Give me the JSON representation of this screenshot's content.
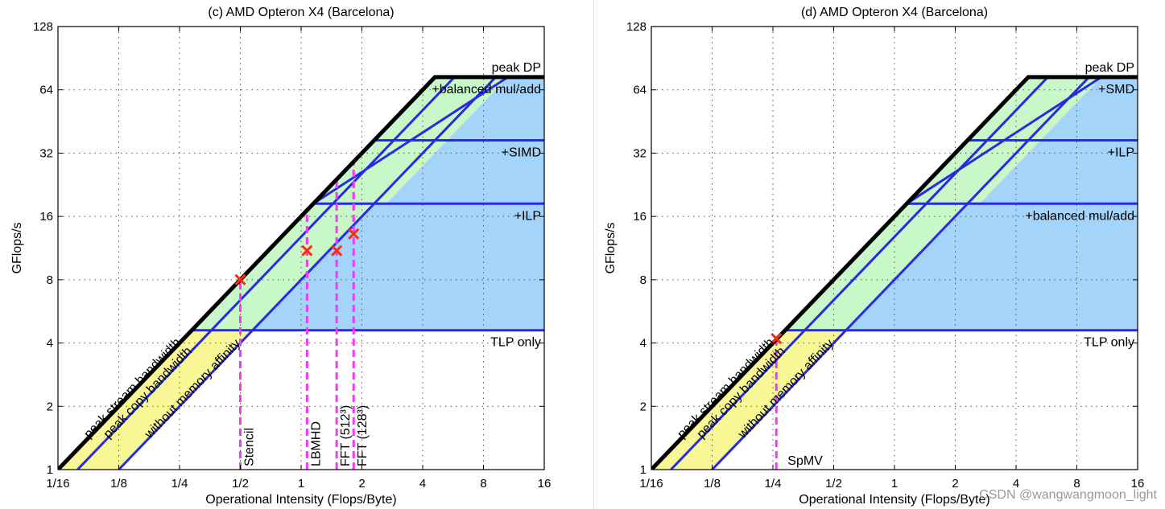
{
  "colors": {
    "roof": "#000000",
    "ceiling": "#2a2ae6",
    "kernel": "#ff33ff",
    "marker": "#ff2a14",
    "yellow": "#f7f796",
    "green": "#c8f7c8",
    "blue": "#a4d4fa",
    "grid": "#555555"
  },
  "watermark": "CSDN @wangwangmoon_light",
  "chart_data": [
    {
      "type": "roofline",
      "title": "(c) AMD Opteron X4 (Barcelona)",
      "xlabel": "Operational Intensity (Flops/Byte)",
      "ylabel": "GFlops/s",
      "xscale": "log2",
      "yscale": "log2",
      "xlim": [
        0.0625,
        16
      ],
      "ylim": [
        1,
        128
      ],
      "xticks": [
        0.0625,
        0.125,
        0.25,
        0.5,
        1,
        2,
        4,
        8,
        16
      ],
      "xtick_labels": [
        "1/16",
        "1/8",
        "1/4",
        "1/2",
        "1",
        "2",
        "4",
        "8",
        "16"
      ],
      "yticks": [
        1,
        2,
        4,
        8,
        16,
        32,
        64,
        128
      ],
      "ytick_labels": [
        "1",
        "2",
        "4",
        "8",
        "16",
        "32",
        "64",
        "128"
      ],
      "grid": true,
      "peak": 73.6,
      "peak_label": "peak DP",
      "ceilings": [
        {
          "label": "+balanced mul/add",
          "value": 73.6
        },
        {
          "label": "+SIMD",
          "value": 36.8
        },
        {
          "label": "+ILP",
          "value": 18.4
        },
        {
          "label": "TLP only",
          "value": 4.6
        }
      ],
      "bandwidths": [
        {
          "label": "peak stream bandwidth",
          "gbps": 16.0
        },
        {
          "label": "peak copy bandwidth",
          "gbps": 12.8
        },
        {
          "label": "without memory affinity",
          "gbps": 8.0
        }
      ],
      "kernels": [
        {
          "label": "Stencil",
          "oi": 0.5,
          "gflops": 8.0
        },
        {
          "label": "LBMHD",
          "oi": 1.07,
          "gflops": 11.0
        },
        {
          "label": "FFT (512³)",
          "oi": 1.5,
          "gflops": 11.0
        },
        {
          "label": "FFT (128³)",
          "oi": 1.82,
          "gflops": 13.2
        }
      ]
    },
    {
      "type": "roofline",
      "title": "(d) AMD Opteron X4 (Barcelona)",
      "xlabel": "Operational Intensity (Flops/Byte)",
      "ylabel": "GFlops/s",
      "xscale": "log2",
      "yscale": "log2",
      "xlim": [
        0.0625,
        16
      ],
      "ylim": [
        1,
        128
      ],
      "xticks": [
        0.0625,
        0.125,
        0.25,
        0.5,
        1,
        2,
        4,
        8,
        16
      ],
      "xtick_labels": [
        "1/16",
        "1/8",
        "1/4",
        "1/2",
        "1",
        "2",
        "4",
        "8",
        "16"
      ],
      "yticks": [
        1,
        2,
        4,
        8,
        16,
        32,
        64,
        128
      ],
      "ytick_labels": [
        "1",
        "2",
        "4",
        "8",
        "16",
        "32",
        "64",
        "128"
      ],
      "grid": true,
      "peak": 73.6,
      "peak_label": "peak DP",
      "ceilings": [
        {
          "label": "+SMD",
          "value": 73.6
        },
        {
          "label": "+ILP",
          "value": 36.8
        },
        {
          "label": "+balanced mul/add",
          "value": 18.4
        },
        {
          "label": "TLP only",
          "value": 4.6
        }
      ],
      "bandwidths": [
        {
          "label": "peak stream bandwidth",
          "gbps": 16.0
        },
        {
          "label": "peak copy bandwidth",
          "gbps": 12.8
        },
        {
          "label": "without memory affinity",
          "gbps": 8.0
        }
      ],
      "kernels": [
        {
          "label": "SpMV",
          "oi": 0.26,
          "gflops": 4.2
        }
      ]
    }
  ]
}
